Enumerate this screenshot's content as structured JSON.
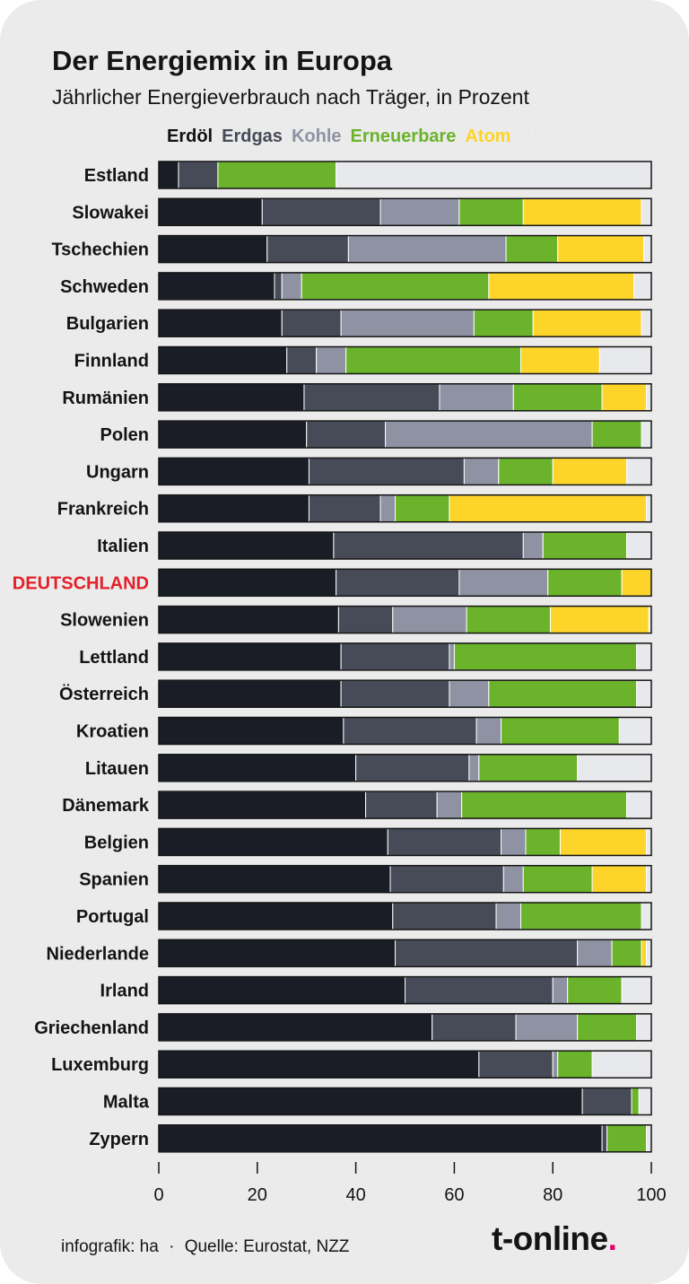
{
  "chart_data": {
    "type": "bar",
    "orientation": "horizontal",
    "stacked": true,
    "title": "Der Energiemix in Europa",
    "subtitle": "Jährlicher Energieverbrauch nach Träger, in Prozent",
    "xlim": [
      0,
      100
    ],
    "x_ticks": [
      "0",
      "20",
      "40",
      "60",
      "80",
      "100"
    ],
    "legend_position": "top",
    "highlight_category": "DEUTSCHLAND",
    "highlight_color": "#e5202a",
    "categories": [
      "Estland",
      "Slowakei",
      "Tschechien",
      "Schweden",
      "Bulgarien",
      "Finnland",
      "Rumänien",
      "Polen",
      "Ungarn",
      "Frankreich",
      "Italien",
      "DEUTSCHLAND",
      "Slowenien",
      "Lettland",
      "Österreich",
      "Kroatien",
      "Litauen",
      "Dänemark",
      "Belgien",
      "Spanien",
      "Portugal",
      "Niederlande",
      "Irland",
      "Griechenland",
      "Luxemburg",
      "Malta",
      "Zypern"
    ],
    "series": [
      {
        "name": "Erdöl",
        "color": "#1a1d26",
        "values": [
          4,
          21,
          22,
          23.5,
          25,
          26,
          29.5,
          30,
          30.5,
          30.5,
          35.5,
          36,
          36.5,
          37,
          37,
          37.5,
          40,
          42,
          46.5,
          47,
          47.5,
          48,
          50,
          55.5,
          65,
          86,
          90
        ]
      },
      {
        "name": "Erdgas",
        "color": "#464b57",
        "values": [
          8,
          24,
          16.5,
          1.5,
          12,
          6,
          27.5,
          16,
          31.5,
          14.5,
          38.5,
          25,
          11,
          22,
          22,
          27,
          23,
          14.5,
          23,
          23,
          21,
          37,
          30,
          17,
          15,
          10,
          1
        ]
      },
      {
        "name": "Kohle",
        "color": "#8e92a2",
        "values": [
          0,
          16,
          32,
          4,
          27,
          6,
          15,
          42,
          7,
          3,
          4,
          18,
          15,
          1,
          8,
          5,
          2,
          5,
          5,
          4,
          5,
          7,
          3,
          12.5,
          1,
          0,
          0
        ]
      },
      {
        "name": "Erneuerbare",
        "color": "#6ab32a",
        "values": [
          24,
          13,
          10.5,
          38,
          12,
          35.5,
          18,
          10,
          11,
          11,
          17,
          15,
          17,
          37,
          30,
          24,
          20,
          33.5,
          7,
          14,
          24.5,
          6,
          11,
          12,
          7,
          1.5,
          8
        ]
      },
      {
        "name": "Atom",
        "color": "#fdd42a",
        "values": [
          0,
          24,
          17.5,
          29.5,
          22,
          16,
          9,
          0,
          15,
          40,
          0,
          6,
          20,
          0,
          0,
          0,
          0,
          0,
          17.5,
          11,
          0,
          1,
          0,
          0,
          0,
          0,
          0
        ]
      },
      {
        "name": "Andere",
        "color": "#e8e9ed",
        "values": [
          64,
          2,
          1.5,
          3.5,
          2,
          10.5,
          1,
          2,
          5,
          1,
          5,
          0,
          0.5,
          3,
          3,
          6.5,
          15,
          5,
          1,
          1,
          2,
          1,
          6,
          3,
          12,
          2.5,
          1
        ]
      }
    ]
  },
  "footer": {
    "credit": "infografik: ha",
    "separator": "·",
    "source": "Quelle: Eurostat, NZZ",
    "brand": "t-online",
    "brand_dot": "."
  }
}
